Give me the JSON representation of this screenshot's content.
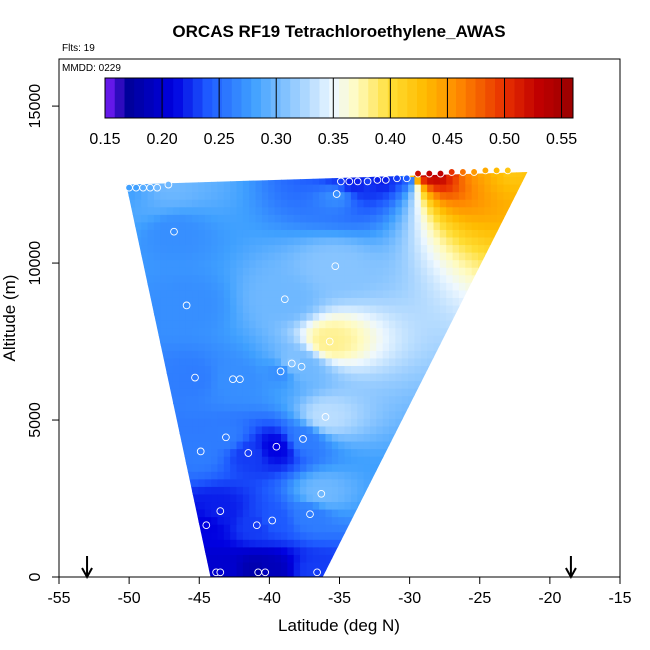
{
  "chart_data": {
    "type": "heatmap",
    "title": "ORCAS RF19 Tetrachloroethylene_AWAS",
    "flts_label": "Flts: 19",
    "mmdd_label": "MMDD: 0229",
    "xlabel": "Latitude (deg N)",
    "ylabel": "Altitude (m)",
    "xlim": [
      -55,
      -15
    ],
    "ylim": [
      0,
      16500
    ],
    "x_ticks": [
      -55,
      -50,
      -45,
      -40,
      -35,
      -30,
      -25,
      -20,
      -15
    ],
    "x_tick_labels": [
      "-55",
      "-50",
      "-45",
      "-40",
      "-35",
      "-30",
      "-25",
      "-20",
      "-15"
    ],
    "y_ticks": [
      0,
      5000,
      10000,
      15000
    ],
    "y_tick_labels": [
      "0",
      "5000",
      "10000",
      "15000"
    ],
    "colorbar": {
      "min": 0.15,
      "max": 0.56,
      "ticks": [
        0.15,
        0.2,
        0.25,
        0.3,
        0.35,
        0.4,
        0.45,
        0.5,
        0.55
      ],
      "tick_labels": [
        "0.15",
        "0.20",
        "0.25",
        "0.30",
        "0.35",
        "0.40",
        "0.45",
        "0.50",
        "0.55"
      ],
      "color_stops": [
        {
          "v": 0.15,
          "c": "#7f1fff"
        },
        {
          "v": 0.17,
          "c": "#00009a"
        },
        {
          "v": 0.21,
          "c": "#0000e0"
        },
        {
          "v": 0.24,
          "c": "#1e5aff"
        },
        {
          "v": 0.28,
          "c": "#3fa0ff"
        },
        {
          "v": 0.32,
          "c": "#9fd0ff"
        },
        {
          "v": 0.35,
          "c": "#eef8ff"
        },
        {
          "v": 0.37,
          "c": "#fffbc0"
        },
        {
          "v": 0.4,
          "c": "#ffdd33"
        },
        {
          "v": 0.43,
          "c": "#ffbb00"
        },
        {
          "v": 0.46,
          "c": "#ff8800"
        },
        {
          "v": 0.5,
          "c": "#e83000"
        },
        {
          "v": 0.53,
          "c": "#c00000"
        },
        {
          "v": 0.56,
          "c": "#990000"
        }
      ]
    },
    "domain_outline": [
      {
        "lat": -50.2,
        "alt": 12500
      },
      {
        "lat": -21.6,
        "alt": 12900
      },
      {
        "lat": -36.2,
        "alt": 0
      },
      {
        "lat": -44.2,
        "alt": 0
      }
    ],
    "samples": [
      {
        "lat": -50.0,
        "alt": 12400,
        "v": 0.28
      },
      {
        "lat": -49.5,
        "alt": 12400,
        "v": 0.28
      },
      {
        "lat": -49.0,
        "alt": 12400,
        "v": 0.29
      },
      {
        "lat": -48.5,
        "alt": 12400,
        "v": 0.29
      },
      {
        "lat": -48.0,
        "alt": 12400,
        "v": 0.3
      },
      {
        "lat": -47.2,
        "alt": 12500,
        "v": 0.3
      },
      {
        "lat": -34.9,
        "alt": 12600,
        "v": 0.23
      },
      {
        "lat": -34.3,
        "alt": 12600,
        "v": 0.22
      },
      {
        "lat": -33.7,
        "alt": 12600,
        "v": 0.22
      },
      {
        "lat": -33.0,
        "alt": 12600,
        "v": 0.23
      },
      {
        "lat": -32.3,
        "alt": 12650,
        "v": 0.22
      },
      {
        "lat": -31.7,
        "alt": 12650,
        "v": 0.22
      },
      {
        "lat": -30.9,
        "alt": 12700,
        "v": 0.23
      },
      {
        "lat": -30.2,
        "alt": 12700,
        "v": 0.24
      },
      {
        "lat": -29.4,
        "alt": 12850,
        "v": 0.52
      },
      {
        "lat": -28.6,
        "alt": 12850,
        "v": 0.53
      },
      {
        "lat": -27.8,
        "alt": 12850,
        "v": 0.53
      },
      {
        "lat": -27.0,
        "alt": 12900,
        "v": 0.5
      },
      {
        "lat": -26.2,
        "alt": 12900,
        "v": 0.47
      },
      {
        "lat": -25.4,
        "alt": 12900,
        "v": 0.45
      },
      {
        "lat": -24.6,
        "alt": 12950,
        "v": 0.44
      },
      {
        "lat": -23.8,
        "alt": 12950,
        "v": 0.43
      },
      {
        "lat": -23.0,
        "alt": 12950,
        "v": 0.42
      },
      {
        "lat": -35.2,
        "alt": 12200,
        "v": 0.27
      },
      {
        "lat": -46.8,
        "alt": 11000,
        "v": 0.27
      },
      {
        "lat": -35.3,
        "alt": 9900,
        "v": 0.31
      },
      {
        "lat": -38.9,
        "alt": 8850,
        "v": 0.3
      },
      {
        "lat": -45.9,
        "alt": 8650,
        "v": 0.27
      },
      {
        "lat": -35.7,
        "alt": 7500,
        "v": 0.38
      },
      {
        "lat": -37.7,
        "alt": 6700,
        "v": 0.3
      },
      {
        "lat": -38.4,
        "alt": 6800,
        "v": 0.31
      },
      {
        "lat": -39.2,
        "alt": 6550,
        "v": 0.27
      },
      {
        "lat": -45.3,
        "alt": 6350,
        "v": 0.26
      },
      {
        "lat": -42.6,
        "alt": 6300,
        "v": 0.27
      },
      {
        "lat": -42.1,
        "alt": 6300,
        "v": 0.27
      },
      {
        "lat": -36.0,
        "alt": 5100,
        "v": 0.33
      },
      {
        "lat": -43.1,
        "alt": 4450,
        "v": 0.26
      },
      {
        "lat": -37.6,
        "alt": 4400,
        "v": 0.26
      },
      {
        "lat": -44.9,
        "alt": 4000,
        "v": 0.26
      },
      {
        "lat": -39.5,
        "alt": 4150,
        "v": 0.21
      },
      {
        "lat": -41.5,
        "alt": 3950,
        "v": 0.23
      },
      {
        "lat": -36.3,
        "alt": 2650,
        "v": 0.3
      },
      {
        "lat": -43.5,
        "alt": 2100,
        "v": 0.22
      },
      {
        "lat": -37.1,
        "alt": 2000,
        "v": 0.26
      },
      {
        "lat": -44.5,
        "alt": 1650,
        "v": 0.21
      },
      {
        "lat": -39.8,
        "alt": 1800,
        "v": 0.24
      },
      {
        "lat": -40.9,
        "alt": 1650,
        "v": 0.23
      },
      {
        "lat": -43.8,
        "alt": 150,
        "v": 0.2
      },
      {
        "lat": -43.5,
        "alt": 150,
        "v": 0.2
      },
      {
        "lat": -40.8,
        "alt": 150,
        "v": 0.18
      },
      {
        "lat": -40.3,
        "alt": 150,
        "v": 0.19
      },
      {
        "lat": -36.6,
        "alt": 150,
        "v": 0.23
      }
    ],
    "arrows": [
      {
        "lat": -53.0,
        "dir": "down"
      },
      {
        "lat": -18.5,
        "dir": "down"
      }
    ],
    "grid": false,
    "legend": "colorbar-top-inside"
  }
}
